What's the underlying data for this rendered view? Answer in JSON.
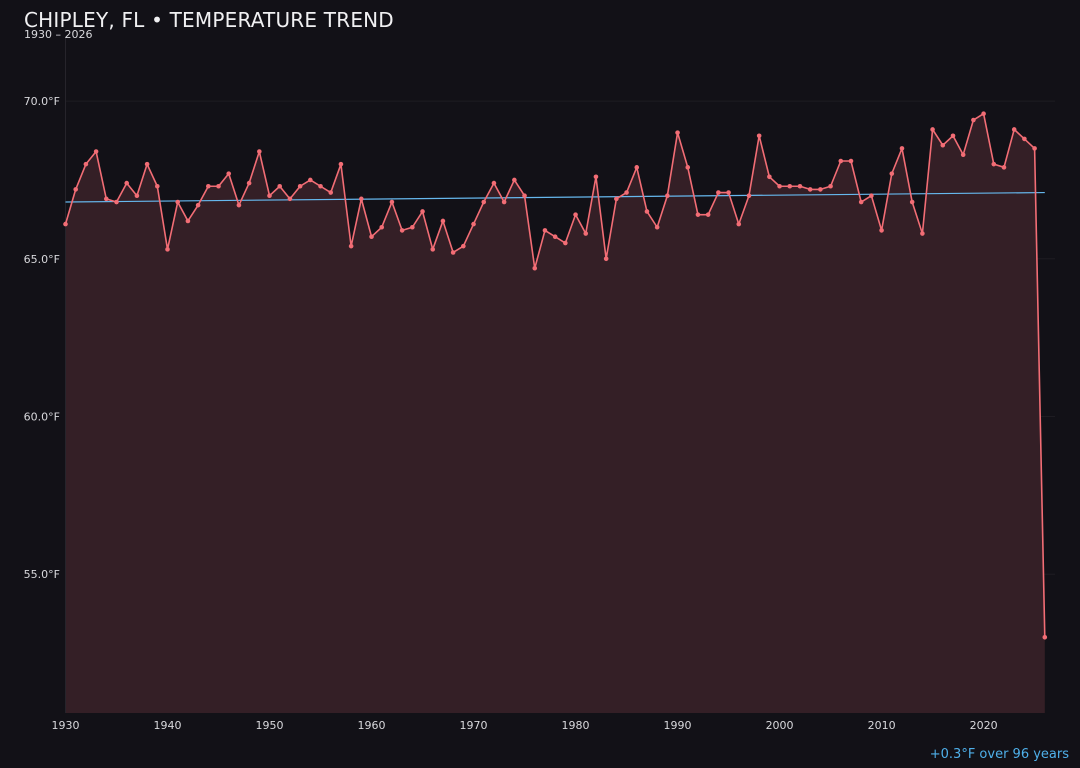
{
  "header": {
    "title": "CHIPLEY, FL • TEMPERATURE TREND",
    "subtitle": "1930 – 2026"
  },
  "footer": {
    "trend_note": "+0.3°F over 96 years"
  },
  "colors": {
    "background": "#121117",
    "series_line": "#f26d75",
    "series_fill": "#341f26",
    "trend_line": "#66b8ee",
    "gridline": "#1e1c22"
  },
  "chart_data": {
    "type": "area",
    "title": "CHIPLEY, FL • TEMPERATURE TREND",
    "subtitle": "1930 – 2026",
    "xlabel": "",
    "ylabel": "",
    "xlim": [
      1930,
      2027
    ],
    "ylim": [
      50.6,
      72
    ],
    "grid": true,
    "legend": "none",
    "x_ticks": [
      1930,
      1940,
      1950,
      1960,
      1970,
      1980,
      1990,
      2000,
      2010,
      2020
    ],
    "x_tick_labels": [
      "1930",
      "1940",
      "1950",
      "1960",
      "1970",
      "1980",
      "1990",
      "2000",
      "2010",
      "2020"
    ],
    "y_ticks": [
      55,
      60,
      65,
      70
    ],
    "y_tick_labels": [
      "55.0°F",
      "60.0°F",
      "65.0°F",
      "70.0°F"
    ],
    "series": [
      {
        "x": [
          1930,
          1931,
          1932,
          1933,
          1934,
          1935,
          1936,
          1937,
          1938,
          1939,
          1940,
          1941,
          1942,
          1943,
          1944,
          1945,
          1946,
          1947,
          1948,
          1949,
          1950,
          1951,
          1952,
          1953,
          1954,
          1955,
          1956,
          1957,
          1958,
          1959,
          1960,
          1961,
          1962,
          1963,
          1964,
          1965,
          1966,
          1967,
          1968,
          1969,
          1970,
          1971,
          1972,
          1973,
          1974,
          1975,
          1976,
          1977,
          1978,
          1979,
          1980,
          1981,
          1982,
          1983,
          1984,
          1985,
          1986,
          1987,
          1988,
          1989,
          1990,
          1991,
          1992,
          1993,
          1994,
          1995,
          1996,
          1997,
          1998,
          1999,
          2000,
          2001,
          2002,
          2003,
          2004,
          2005,
          2006,
          2007,
          2008,
          2009,
          2010,
          2011,
          2012,
          2013,
          2014,
          2015,
          2016,
          2017,
          2018,
          2019,
          2020,
          2021,
          2022,
          2023,
          2024,
          2025,
          2026
        ],
        "values": [
          66.1,
          67.2,
          68.0,
          68.4,
          66.9,
          66.8,
          67.4,
          67.0,
          68.0,
          67.3,
          65.3,
          66.8,
          66.2,
          66.7,
          67.3,
          67.3,
          67.7,
          66.7,
          67.4,
          68.4,
          67.0,
          67.3,
          66.9,
          67.3,
          67.5,
          67.3,
          67.1,
          68.0,
          65.4,
          66.9,
          65.7,
          66.0,
          66.8,
          65.9,
          66.0,
          66.5,
          65.3,
          66.2,
          65.2,
          65.4,
          66.1,
          66.8,
          67.4,
          66.8,
          67.5,
          67.0,
          64.7,
          65.9,
          65.7,
          65.5,
          66.4,
          65.8,
          67.6,
          65.0,
          66.9,
          67.1,
          67.9,
          66.5,
          66.0,
          67.0,
          69.0,
          67.9,
          66.4,
          66.4,
          67.1,
          67.1,
          66.1,
          67.0,
          68.9,
          67.6,
          67.3,
          67.3,
          67.3,
          67.2,
          67.2,
          67.3,
          68.1,
          68.1,
          66.8,
          67.0,
          65.9,
          67.7,
          68.5,
          66.8,
          65.8,
          69.1,
          68.6,
          68.9,
          68.3,
          69.4,
          69.6,
          68.0,
          67.9,
          69.1,
          68.8,
          68.5,
          53.0
        ]
      }
    ],
    "trend": {
      "label": "+0.3°F over 96 years",
      "x": [
        1930,
        2026
      ],
      "values": [
        66.8,
        67.1
      ]
    }
  }
}
